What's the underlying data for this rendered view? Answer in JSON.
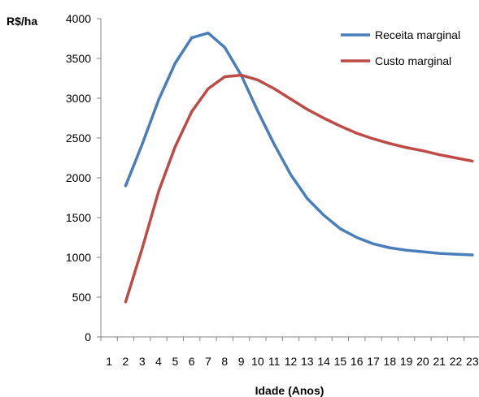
{
  "chart_data": {
    "type": "line",
    "title": "",
    "xlabel": "Idade (Anos)",
    "ylabel": "R$/ha",
    "categories": [
      "1",
      "2",
      "3",
      "4",
      "5",
      "6",
      "7",
      "8",
      "9",
      "10",
      "11",
      "12",
      "13",
      "14",
      "15",
      "16",
      "17",
      "18",
      "19",
      "20",
      "21",
      "22",
      "23"
    ],
    "ylim": [
      0,
      4000
    ],
    "yticks": [
      0,
      500,
      1000,
      1500,
      2000,
      2500,
      3000,
      3500,
      4000
    ],
    "grid": false,
    "legend_position": "top-right",
    "series": [
      {
        "name": "Receita marginal",
        "color": "#4a7ebb",
        "values": [
          null,
          1900,
          2420,
          2980,
          3440,
          3760,
          3820,
          3640,
          3290,
          2840,
          2420,
          2040,
          1740,
          1530,
          1360,
          1250,
          1170,
          1120,
          1090,
          1070,
          1050,
          1040,
          1030
        ]
      },
      {
        "name": "Custo marginal",
        "color": "#be4b48",
        "values": [
          null,
          440,
          1110,
          1830,
          2390,
          2830,
          3120,
          3270,
          3290,
          3230,
          3120,
          2990,
          2860,
          2750,
          2650,
          2560,
          2490,
          2430,
          2380,
          2340,
          2290,
          2250,
          2210
        ]
      }
    ]
  }
}
